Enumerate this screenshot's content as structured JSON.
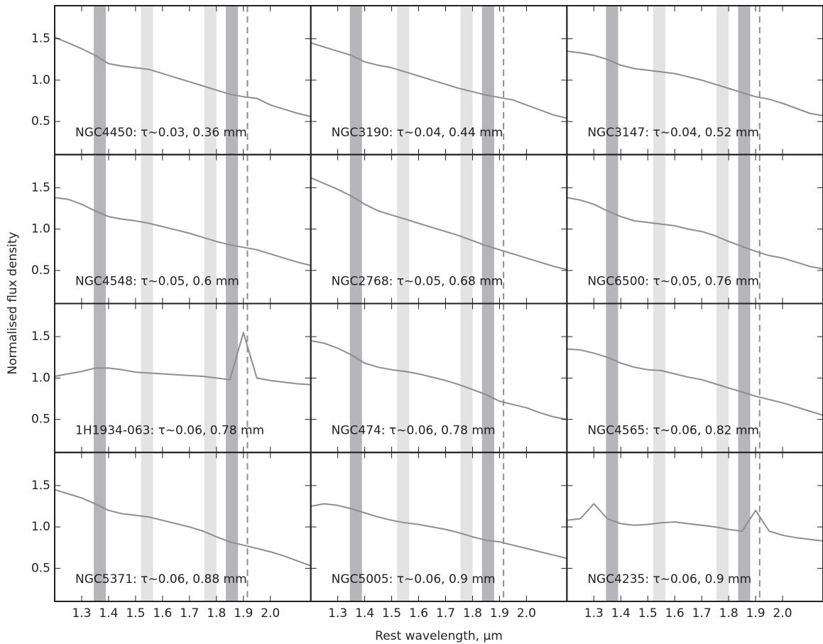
{
  "x_label": "Rest wavelength, μm",
  "y_label": "Normalised flux density",
  "axes": {
    "xlim": [
      1.2,
      2.15
    ],
    "ylim": [
      0.1,
      1.9
    ],
    "xticks": [
      1.3,
      1.4,
      1.5,
      1.6,
      1.7,
      1.8,
      1.9,
      {
        "value": 2,
        "label": "2.0"
      }
    ],
    "yticks": [
      0.5,
      {
        "value": 1,
        "label": "1.0"
      },
      1.5
    ],
    "bands": [
      [
        1.345,
        1.39
      ],
      [
        1.52,
        1.565
      ],
      [
        1.755,
        1.8
      ],
      [
        1.835,
        1.88
      ]
    ],
    "band_colors": [
      "#b6b6ba",
      "#e3e3e6",
      "#e3e3e6",
      "#b6b6ba"
    ],
    "dashed_x": 1.915,
    "line_color": "#8e8e8e"
  },
  "chart_data": [
    {
      "type": "line",
      "annotation": "NGC4450: τ∼0.03, 0.36 mm",
      "x": [
        1.2,
        1.25,
        1.3,
        1.35,
        1.4,
        1.45,
        1.5,
        1.55,
        1.6,
        1.65,
        1.7,
        1.75,
        1.8,
        1.85,
        1.9,
        1.95,
        2.0,
        2.05,
        2.1,
        2.15
      ],
      "values": [
        1.52,
        1.45,
        1.38,
        1.3,
        1.2,
        1.17,
        1.15,
        1.13,
        1.08,
        1.03,
        0.98,
        0.93,
        0.88,
        0.83,
        0.8,
        0.78,
        0.7,
        0.65,
        0.6,
        0.56
      ]
    },
    {
      "type": "line",
      "annotation": "NGC3190: τ∼0.04, 0.44 mm",
      "x": [
        1.2,
        1.25,
        1.3,
        1.35,
        1.4,
        1.45,
        1.5,
        1.55,
        1.6,
        1.65,
        1.7,
        1.75,
        1.8,
        1.85,
        1.9,
        1.95,
        2.0,
        2.05,
        2.1,
        2.15
      ],
      "values": [
        1.45,
        1.4,
        1.35,
        1.3,
        1.22,
        1.18,
        1.15,
        1.1,
        1.05,
        1.0,
        0.95,
        0.9,
        0.86,
        0.82,
        0.79,
        0.76,
        0.7,
        0.64,
        0.58,
        0.54
      ]
    },
    {
      "type": "line",
      "annotation": "NGC3147: τ∼0.04, 0.52 mm",
      "x": [
        1.2,
        1.25,
        1.3,
        1.35,
        1.4,
        1.45,
        1.5,
        1.55,
        1.6,
        1.65,
        1.7,
        1.75,
        1.8,
        1.85,
        1.9,
        1.95,
        2.0,
        2.05,
        2.1,
        2.15
      ],
      "values": [
        1.35,
        1.33,
        1.3,
        1.25,
        1.18,
        1.14,
        1.12,
        1.1,
        1.08,
        1.04,
        1.0,
        0.95,
        0.9,
        0.85,
        0.8,
        0.77,
        0.72,
        0.66,
        0.6,
        0.57
      ]
    },
    {
      "type": "line",
      "annotation": "NGC4548: τ∼0.05, 0.6 mm",
      "x": [
        1.2,
        1.25,
        1.3,
        1.35,
        1.4,
        1.45,
        1.5,
        1.55,
        1.6,
        1.65,
        1.7,
        1.75,
        1.8,
        1.85,
        1.9,
        1.95,
        2.0,
        2.05,
        2.1,
        2.15
      ],
      "values": [
        1.38,
        1.36,
        1.3,
        1.22,
        1.15,
        1.12,
        1.1,
        1.07,
        1.03,
        0.99,
        0.95,
        0.9,
        0.85,
        0.81,
        0.78,
        0.75,
        0.7,
        0.65,
        0.6,
        0.56
      ]
    },
    {
      "type": "line",
      "annotation": "NGC2768: τ∼0.05, 0.68 mm",
      "x": [
        1.2,
        1.25,
        1.3,
        1.35,
        1.4,
        1.45,
        1.5,
        1.55,
        1.6,
        1.65,
        1.7,
        1.75,
        1.8,
        1.85,
        1.9,
        1.95,
        2.0,
        2.05,
        2.1,
        2.15
      ],
      "values": [
        1.62,
        1.55,
        1.48,
        1.4,
        1.3,
        1.22,
        1.17,
        1.12,
        1.07,
        1.02,
        0.97,
        0.92,
        0.86,
        0.8,
        0.75,
        0.7,
        0.65,
        0.6,
        0.55,
        0.51
      ]
    },
    {
      "type": "line",
      "annotation": "NGC6500: τ∼0.05, 0.76 mm",
      "x": [
        1.2,
        1.25,
        1.3,
        1.35,
        1.4,
        1.45,
        1.5,
        1.55,
        1.6,
        1.65,
        1.7,
        1.75,
        1.8,
        1.85,
        1.9,
        1.95,
        2.0,
        2.05,
        2.1,
        2.15
      ],
      "values": [
        1.38,
        1.35,
        1.3,
        1.22,
        1.15,
        1.1,
        1.08,
        1.06,
        1.04,
        1.0,
        0.97,
        0.92,
        0.85,
        0.79,
        0.73,
        0.68,
        0.65,
        0.6,
        0.55,
        0.52
      ]
    },
    {
      "type": "line",
      "annotation": "1H1934-063: τ∼0.06, 0.78 mm",
      "x": [
        1.2,
        1.25,
        1.3,
        1.35,
        1.4,
        1.45,
        1.5,
        1.55,
        1.6,
        1.65,
        1.7,
        1.75,
        1.8,
        1.85,
        1.9,
        1.95,
        2.0,
        2.05,
        2.1,
        2.15
      ],
      "values": [
        1.02,
        1.05,
        1.08,
        1.12,
        1.12,
        1.1,
        1.07,
        1.06,
        1.05,
        1.04,
        1.03,
        1.02,
        1.0,
        0.98,
        1.55,
        1.0,
        0.97,
        0.95,
        0.93,
        0.92
      ]
    },
    {
      "type": "line",
      "annotation": "NGC474: τ∼0.06, 0.78 mm",
      "x": [
        1.2,
        1.25,
        1.3,
        1.35,
        1.4,
        1.45,
        1.5,
        1.55,
        1.6,
        1.65,
        1.7,
        1.75,
        1.8,
        1.85,
        1.9,
        1.95,
        2.0,
        2.05,
        2.1,
        2.15
      ],
      "values": [
        1.45,
        1.42,
        1.36,
        1.28,
        1.18,
        1.13,
        1.1,
        1.08,
        1.05,
        1.01,
        0.97,
        0.92,
        0.86,
        0.8,
        0.72,
        0.68,
        0.64,
        0.58,
        0.53,
        0.5
      ]
    },
    {
      "type": "line",
      "annotation": "NGC4565: τ∼0.06, 0.82 mm",
      "x": [
        1.2,
        1.25,
        1.3,
        1.35,
        1.4,
        1.45,
        1.5,
        1.55,
        1.6,
        1.65,
        1.7,
        1.75,
        1.8,
        1.85,
        1.9,
        1.95,
        2.0,
        2.05,
        2.1,
        2.15
      ],
      "values": [
        1.35,
        1.34,
        1.3,
        1.25,
        1.18,
        1.13,
        1.1,
        1.09,
        1.05,
        1.01,
        0.98,
        0.93,
        0.88,
        0.83,
        0.78,
        0.74,
        0.7,
        0.65,
        0.6,
        0.55
      ]
    },
    {
      "type": "line",
      "annotation": "NGC5371: τ∼0.06, 0.88 mm",
      "x": [
        1.2,
        1.25,
        1.3,
        1.35,
        1.4,
        1.45,
        1.5,
        1.55,
        1.6,
        1.65,
        1.7,
        1.75,
        1.8,
        1.85,
        1.9,
        1.95,
        2.0,
        2.05,
        2.1,
        2.15
      ],
      "values": [
        1.45,
        1.4,
        1.35,
        1.28,
        1.2,
        1.16,
        1.14,
        1.12,
        1.08,
        1.04,
        1.0,
        0.95,
        0.88,
        0.82,
        0.78,
        0.74,
        0.7,
        0.65,
        0.59,
        0.53
      ]
    },
    {
      "type": "line",
      "annotation": "NGC5005: τ∼0.06, 0.9 mm",
      "x": [
        1.2,
        1.25,
        1.3,
        1.35,
        1.4,
        1.45,
        1.5,
        1.55,
        1.6,
        1.65,
        1.7,
        1.75,
        1.8,
        1.85,
        1.9,
        1.95,
        2.0,
        2.05,
        2.1,
        2.15
      ],
      "values": [
        1.25,
        1.28,
        1.26,
        1.22,
        1.17,
        1.12,
        1.08,
        1.05,
        1.03,
        1.0,
        0.97,
        0.93,
        0.88,
        0.84,
        0.82,
        0.78,
        0.74,
        0.7,
        0.66,
        0.62
      ]
    },
    {
      "type": "line",
      "annotation": "NGC4235: τ∼0.06, 0.9 mm",
      "x": [
        1.2,
        1.25,
        1.3,
        1.35,
        1.4,
        1.45,
        1.5,
        1.55,
        1.6,
        1.65,
        1.7,
        1.75,
        1.8,
        1.85,
        1.9,
        1.95,
        2.0,
        2.05,
        2.1,
        2.15
      ],
      "values": [
        1.08,
        1.1,
        1.28,
        1.1,
        1.04,
        1.02,
        1.03,
        1.05,
        1.06,
        1.04,
        1.02,
        1.0,
        0.97,
        0.95,
        1.2,
        0.95,
        0.9,
        0.87,
        0.85,
        0.83
      ]
    }
  ]
}
